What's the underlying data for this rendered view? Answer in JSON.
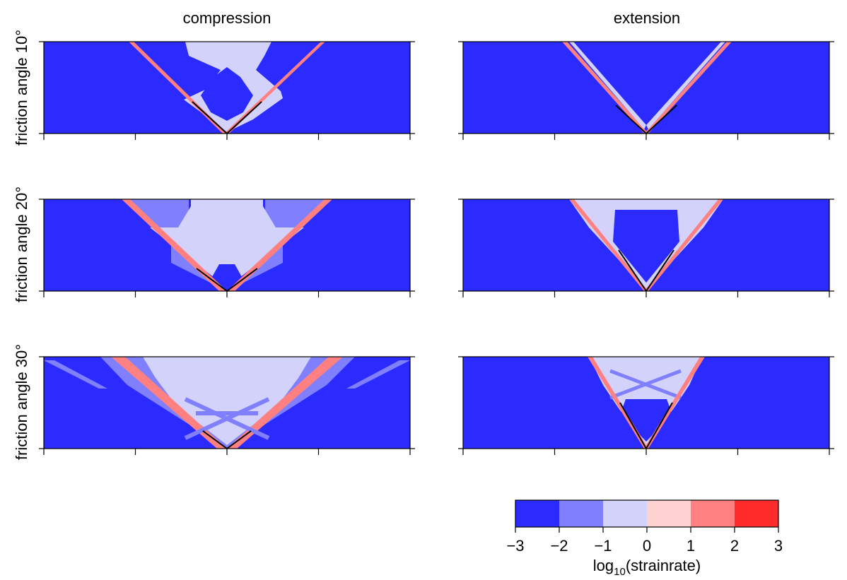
{
  "columns": [
    "compression",
    "extension"
  ],
  "rows": [
    "friction angle 10°",
    "friction angle 20°",
    "friction angle 30°"
  ],
  "colorbar": {
    "label_main": "log",
    "label_sub": "10",
    "label_rest": "(strainrate)",
    "ticks": [
      "−3",
      "−2",
      "−1",
      "0",
      "1",
      "2",
      "3"
    ]
  },
  "chart_data": {
    "type": "heatmap",
    "colorbar_range": [
      -3,
      3
    ],
    "colorbar_bins": [
      {
        "from": -3,
        "to": -2,
        "color": "#2b2bff"
      },
      {
        "from": -2,
        "to": -1,
        "color": "#8080ff"
      },
      {
        "from": -1,
        "to": 0,
        "color": "#d2d2fb"
      },
      {
        "from": 0,
        "to": 1,
        "color": "#ffd2d2"
      },
      {
        "from": 1,
        "to": 2,
        "color": "#ff8080"
      },
      {
        "from": 2,
        "to": 3,
        "color": "#ff2b2b"
      }
    ],
    "panels": [
      {
        "column": "compression",
        "row": "friction angle 10°"
      },
      {
        "column": "extension",
        "row": "friction angle 10°"
      },
      {
        "column": "compression",
        "row": "friction angle 20°"
      },
      {
        "column": "extension",
        "row": "friction angle 20°"
      },
      {
        "column": "compression",
        "row": "friction angle 30°"
      },
      {
        "column": "extension",
        "row": "friction angle 30°"
      }
    ]
  }
}
